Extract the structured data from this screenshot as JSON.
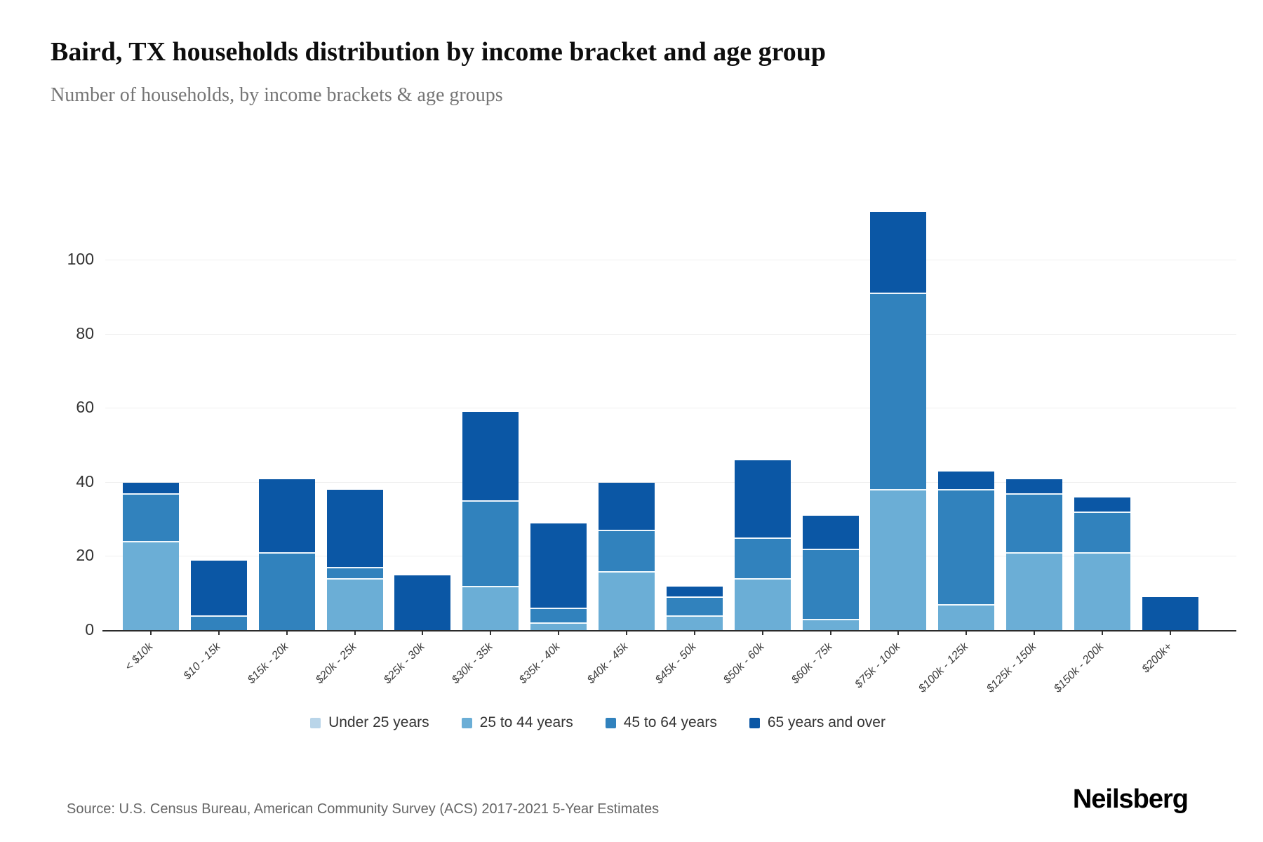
{
  "header": {
    "title": "Baird, TX households distribution by income bracket and age group",
    "subtitle": "Number of households, by income brackets & age groups"
  },
  "chart_data": {
    "type": "bar",
    "stacked": true,
    "title": "Baird, TX households distribution by income bracket and age group",
    "xlabel": "",
    "ylabel": "",
    "ylim": [
      0,
      121
    ],
    "yticks": [
      0,
      20,
      40,
      60,
      80,
      100
    ],
    "grid": "horizontal",
    "legend_position": "bottom",
    "categories": [
      "< $10k",
      "$10 - 15k",
      "$15k - 20k",
      "$20k - 25k",
      "$25k - 30k",
      "$30k - 35k",
      "$35k - 40k",
      "$40k - 45k",
      "$45k - 50k",
      "$50k - 60k",
      "$60k - 75k",
      "$75k - 100k",
      "$100k - 125k",
      "$125k - 150k",
      "$150k - 200k",
      "$200k+"
    ],
    "series": [
      {
        "name": "Under 25 years",
        "color": "#b9d5e9",
        "values": [
          0,
          0,
          0,
          0,
          0,
          0,
          0,
          0,
          0,
          0,
          0,
          0,
          0,
          0,
          0,
          0
        ]
      },
      {
        "name": "25 to 44 years",
        "color": "#6baed6",
        "values": [
          24,
          0,
          0,
          14,
          0,
          12,
          2,
          16,
          4,
          14,
          3,
          38,
          7,
          21,
          21,
          0
        ]
      },
      {
        "name": "45 to 64 years",
        "color": "#3182bd",
        "values": [
          13,
          4,
          21,
          3,
          0,
          23,
          4,
          11,
          5,
          11,
          19,
          53,
          31,
          16,
          11,
          0
        ]
      },
      {
        "name": "65 years and over",
        "color": "#0b57a5",
        "values": [
          3,
          15,
          20,
          21,
          15,
          24,
          23,
          13,
          3,
          21,
          9,
          22,
          5,
          4,
          4,
          9
        ]
      }
    ],
    "totals": [
      40,
      19,
      41,
      38,
      15,
      59,
      29,
      40,
      12,
      46,
      31,
      113,
      43,
      41,
      36,
      9
    ]
  },
  "footer": {
    "source": "Source: U.S. Census Bureau, American Community Survey (ACS) 2017-2021 5-Year Estimates",
    "brand": "Neilsberg"
  }
}
